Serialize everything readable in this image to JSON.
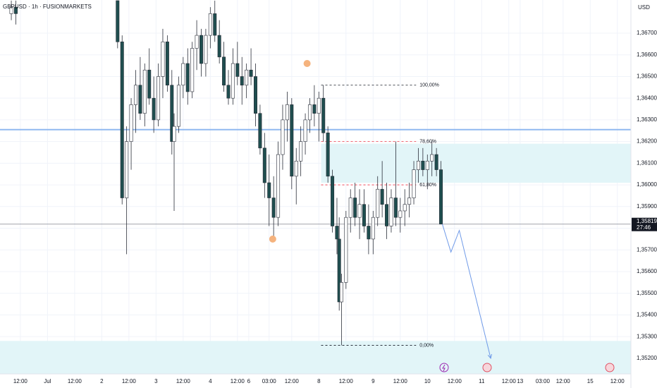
{
  "chart_data": {
    "type": "candlestick",
    "title": "GBPUSD · 1h · FUSIONMARKETS",
    "currency": "USD",
    "up_color": "#ffffff",
    "down_color": "#1f4e4f",
    "outline_color": "#2a2e39",
    "xlim": [
      0,
      279
    ],
    "ylim": [
      1.35128,
      1.36853
    ],
    "grid": true,
    "xticks": [
      {
        "value": 9,
        "label": "12:00"
      },
      {
        "value": 21,
        "label": "Jul"
      },
      {
        "value": 33,
        "label": "12:00"
      },
      {
        "value": 45,
        "label": "2"
      },
      {
        "value": 57,
        "label": "12:00"
      },
      {
        "value": 69,
        "label": "3"
      },
      {
        "value": 81,
        "label": "12:00"
      },
      {
        "value": 93,
        "label": "4"
      },
      {
        "value": 105,
        "label": "12:00"
      },
      {
        "value": 110,
        "label": "6"
      },
      {
        "value": 119,
        "label": "03:00"
      },
      {
        "value": 129,
        "label": "12:00"
      },
      {
        "value": 141,
        "label": "8"
      },
      {
        "value": 153,
        "label": "12:00"
      },
      {
        "value": 165,
        "label": "9"
      },
      {
        "value": 177,
        "label": "12:00"
      },
      {
        "value": 189,
        "label": "10"
      },
      {
        "value": 201,
        "label": "12:00"
      },
      {
        "value": 213,
        "label": "11"
      },
      {
        "value": 225,
        "label": "12:00"
      },
      {
        "value": 230,
        "label": "13"
      },
      {
        "value": 240,
        "label": "03:00"
      },
      {
        "value": 249,
        "label": "12:00"
      },
      {
        "value": 261,
        "label": "15"
      },
      {
        "value": 273,
        "label": "12:00"
      }
    ],
    "yticks": [
      {
        "value": 1.367,
        "label": "1,36700"
      },
      {
        "value": 1.366,
        "label": "1,36600"
      },
      {
        "value": 1.365,
        "label": "1,36500"
      },
      {
        "value": 1.364,
        "label": "1,36400"
      },
      {
        "value": 1.363,
        "label": "1,36300"
      },
      {
        "value": 1.362,
        "label": "1,36200"
      },
      {
        "value": 1.361,
        "label": "1,36100"
      },
      {
        "value": 1.36,
        "label": "1,36000"
      },
      {
        "value": 1.359,
        "label": "1,35900"
      },
      {
        "value": 1.358,
        "label": "1,35800"
      },
      {
        "value": 1.357,
        "label": "1,35700"
      },
      {
        "value": 1.356,
        "label": "1,35600"
      },
      {
        "value": 1.355,
        "label": "1,35500"
      },
      {
        "value": 1.354,
        "label": "1,35400"
      },
      {
        "value": 1.353,
        "label": "1,35300"
      },
      {
        "value": 1.352,
        "label": "1,35200"
      }
    ],
    "x": [
      5,
      7,
      52,
      54,
      56,
      58,
      60,
      62,
      64,
      66,
      68,
      70,
      72,
      74,
      76,
      77,
      79,
      81,
      83,
      85,
      87,
      89,
      91,
      93,
      95,
      97,
      99,
      101,
      103,
      105,
      107,
      109,
      111,
      113,
      115,
      117,
      119,
      121,
      123,
      125,
      127,
      129,
      131,
      133,
      135,
      137,
      139,
      141,
      143,
      145,
      147,
      149,
      150,
      151,
      153,
      155,
      157,
      159,
      161,
      163,
      165,
      167,
      169,
      171,
      173,
      175,
      177,
      179,
      181,
      183,
      185,
      187,
      189,
      191,
      193,
      195
    ],
    "open": [
      1.3679,
      1.3682,
      1.3685,
      1.3666,
      1.3594,
      1.362,
      1.3637,
      1.3646,
      1.3633,
      1.3653,
      1.364,
      1.363,
      1.365,
      1.3666,
      1.3646,
      1.362,
      1.3627,
      1.3646,
      1.3656,
      1.3643,
      1.3663,
      1.3669,
      1.3656,
      1.3669,
      1.3679,
      1.3669,
      1.3659,
      1.3646,
      1.364,
      1.3656,
      1.365,
      1.3646,
      1.3653,
      1.365,
      1.3633,
      1.3617,
      1.3601,
      1.3594,
      1.3585,
      1.3614,
      1.363,
      1.3637,
      1.3604,
      1.3611,
      1.362,
      1.363,
      1.3637,
      1.3633,
      1.364,
      1.3624,
      1.3604,
      1.3581,
      1.3575,
      1.3546,
      1.3555,
      1.3585,
      1.3594,
      1.3585,
      1.3591,
      1.3581,
      1.3575,
      1.3585,
      1.3598,
      1.3591,
      1.3581,
      1.3594,
      1.3585,
      1.3588,
      1.3591,
      1.3594,
      1.3607,
      1.3611,
      1.3607,
      1.3611,
      1.3614,
      1.3607
    ],
    "high": [
      1.3685,
      1.3685,
      1.3685,
      1.3669,
      1.3627,
      1.364,
      1.3653,
      1.3659,
      1.3656,
      1.3663,
      1.365,
      1.3656,
      1.3672,
      1.3669,
      1.3653,
      1.3633,
      1.365,
      1.3659,
      1.3663,
      1.3666,
      1.3676,
      1.3672,
      1.3672,
      1.3682,
      1.3685,
      1.3676,
      1.3666,
      1.3653,
      1.3663,
      1.3666,
      1.3659,
      1.3656,
      1.3663,
      1.3656,
      1.3637,
      1.3624,
      1.3614,
      1.3604,
      1.362,
      1.3637,
      1.3643,
      1.364,
      1.3617,
      1.3627,
      1.3633,
      1.364,
      1.3646,
      1.3643,
      1.3646,
      1.3627,
      1.3607,
      1.3594,
      1.3585,
      1.3559,
      1.3588,
      1.3598,
      1.3601,
      1.3598,
      1.3598,
      1.3591,
      1.3588,
      1.3604,
      1.3611,
      1.3601,
      1.3598,
      1.362,
      1.3594,
      1.3598,
      1.3601,
      1.3611,
      1.3617,
      1.3617,
      1.3614,
      1.362,
      1.3617,
      1.3611
    ],
    "low": [
      1.3676,
      1.3674,
      1.3663,
      1.3591,
      1.3568,
      1.3607,
      1.3624,
      1.363,
      1.3627,
      1.3637,
      1.3624,
      1.3627,
      1.364,
      1.3643,
      1.3614,
      1.3588,
      1.3624,
      1.364,
      1.3637,
      1.364,
      1.3653,
      1.365,
      1.365,
      1.3663,
      1.3666,
      1.3656,
      1.3643,
      1.3637,
      1.3637,
      1.3646,
      1.3637,
      1.364,
      1.3646,
      1.3627,
      1.3614,
      1.3594,
      1.3581,
      1.3575,
      1.3581,
      1.3607,
      1.362,
      1.3598,
      1.3591,
      1.3604,
      1.3614,
      1.3624,
      1.3627,
      1.362,
      1.362,
      1.3601,
      1.3578,
      1.3568,
      1.3542,
      1.3526,
      1.3552,
      1.3578,
      1.3581,
      1.3575,
      1.3578,
      1.3568,
      1.3568,
      1.3581,
      1.3585,
      1.3575,
      1.3578,
      1.3581,
      1.3578,
      1.3581,
      1.3585,
      1.3591,
      1.3601,
      1.3604,
      1.3598,
      1.3604,
      1.3604,
      1.3582
    ],
    "close": [
      1.3682,
      1.3679,
      1.3666,
      1.3594,
      1.362,
      1.3637,
      1.3646,
      1.3633,
      1.3653,
      1.364,
      1.363,
      1.365,
      1.3666,
      1.3646,
      1.362,
      1.3627,
      1.3646,
      1.3656,
      1.3643,
      1.3663,
      1.3669,
      1.3656,
      1.3669,
      1.3679,
      1.3669,
      1.3659,
      1.3646,
      1.364,
      1.3656,
      1.365,
      1.3646,
      1.3653,
      1.365,
      1.3633,
      1.3617,
      1.3601,
      1.3594,
      1.3585,
      1.3614,
      1.363,
      1.3637,
      1.3604,
      1.3611,
      1.362,
      1.363,
      1.3637,
      1.3633,
      1.364,
      1.3624,
      1.3604,
      1.3581,
      1.3575,
      1.3546,
      1.3555,
      1.3585,
      1.3594,
      1.3585,
      1.3591,
      1.3581,
      1.3575,
      1.3585,
      1.3598,
      1.3591,
      1.3581,
      1.3594,
      1.3585,
      1.3588,
      1.3591,
      1.3594,
      1.3607,
      1.3611,
      1.3607,
      1.3611,
      1.3614,
      1.3607,
      1.35819
    ],
    "current_price": {
      "value": 1.35819,
      "label": "1,35819",
      "countdown": "27:46"
    },
    "horizontal_line": {
      "value": 1.36255,
      "color": "#90b8f0"
    },
    "zones": [
      {
        "x": [
          142,
          279
        ],
        "y": [
          1.3601,
          1.3619
        ],
        "color": "#e2f5f8"
      },
      {
        "x": [
          0,
          279
        ],
        "y": [
          1.35128,
          1.3528
        ],
        "color": "#e2f5f8"
      }
    ],
    "fib": {
      "x": [
        142,
        184
      ],
      "levels": [
        {
          "value": 1.3646,
          "label": "100,00%",
          "color": "#131722"
        },
        {
          "value": 1.362,
          "label": "78,60%",
          "color": "#f23645"
        },
        {
          "value": 1.36,
          "label": "61,80%",
          "color": "#f23645"
        },
        {
          "value": 1.3526,
          "label": "0,00%",
          "color": "#131722"
        }
      ]
    },
    "projection": {
      "color": "#6f9ae8",
      "x": [
        195.6,
        199.4,
        203.1,
        217
      ],
      "y": [
        1.35819,
        1.3569,
        1.3579,
        1.352
      ]
    },
    "markers": {
      "color": "#f5b37e",
      "x": [
        135.8,
        120.6
      ],
      "y": [
        1.3656,
        1.3575
      ]
    }
  }
}
